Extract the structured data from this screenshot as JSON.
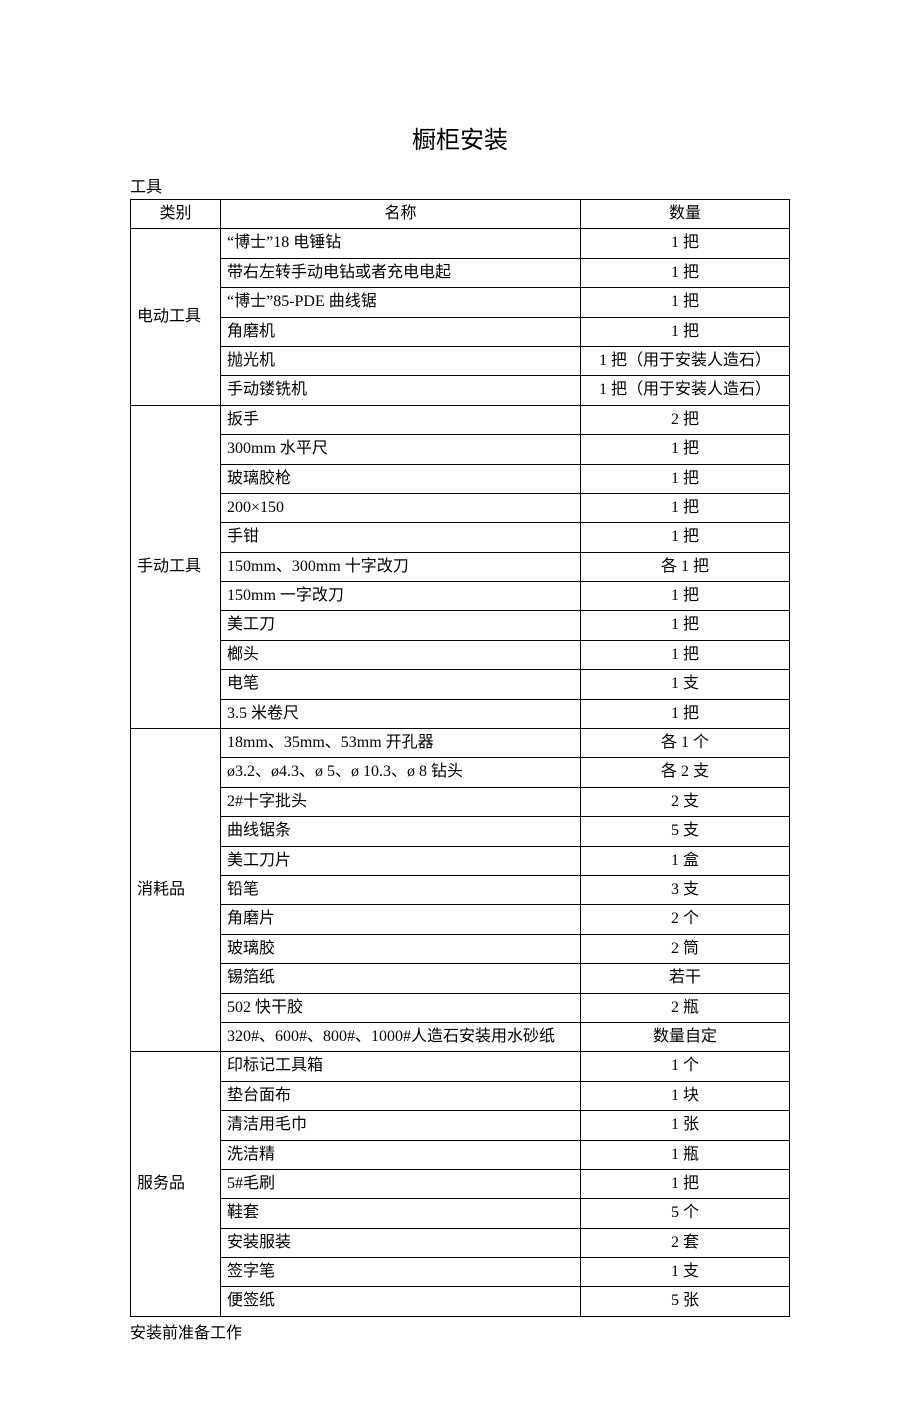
{
  "title": "橱柜安装",
  "section_heading": "工具",
  "footer_note": "安装前准备工作",
  "headers": {
    "category": "类别",
    "name": "名称",
    "qty": "数量"
  },
  "groups": [
    {
      "category": "电动工具",
      "rows": [
        {
          "name": "“博士”18 电锤钻",
          "qty": "1 把"
        },
        {
          "name": "带右左转手动电钻或者充电电起",
          "qty": "1 把"
        },
        {
          "name": "“博士”85-PDE 曲线锯",
          "qty": "1 把"
        },
        {
          "name": "角磨机",
          "qty": "1 把"
        },
        {
          "name": "抛光机",
          "qty": "1 把（用于安装人造石）"
        },
        {
          "name": "手动镂铣机",
          "qty": "1 把（用于安装人造石）"
        }
      ]
    },
    {
      "category": "手动工具",
      "rows": [
        {
          "name": "扳手",
          "qty": "2 把"
        },
        {
          "name": "300mm 水平尺",
          "qty": "1 把"
        },
        {
          "name": "玻璃胶枪",
          "qty": "1 把"
        },
        {
          "name": "200×150",
          "qty": "1 把"
        },
        {
          "name": "手钳",
          "qty": "1 把"
        },
        {
          "name": "150mm、300mm 十字改刀",
          "qty": "各 1 把"
        },
        {
          "name": "150mm 一字改刀",
          "qty": "1 把"
        },
        {
          "name": "美工刀",
          "qty": "1 把"
        },
        {
          "name": "榔头",
          "qty": "1 把"
        },
        {
          "name": "电笔",
          "qty": "1 支"
        },
        {
          "name": "3.5 米卷尺",
          "qty": "1 把"
        }
      ]
    },
    {
      "category": "消耗品",
      "rows": [
        {
          "name": "18mm、35mm、53mm 开孔器",
          "qty": "各 1 个"
        },
        {
          "name": "ø3.2、ø4.3、ø 5、ø 10.3、ø 8 钻头",
          "qty": "各 2 支"
        },
        {
          "name": "2#十字批头",
          "qty": "2 支"
        },
        {
          "name": "曲线锯条",
          "qty": "5 支"
        },
        {
          "name": "美工刀片",
          "qty": "1 盒"
        },
        {
          "name": "铅笔",
          "qty": "3 支"
        },
        {
          "name": "角磨片",
          "qty": "2 个"
        },
        {
          "name": "玻璃胶",
          "qty": "2 筒"
        },
        {
          "name": "锡箔纸",
          "qty": "若干"
        },
        {
          "name": "502 快干胶",
          "qty": "2 瓶"
        },
        {
          "name": "320#、600#、800#、1000#人造石安装用水砂纸",
          "qty": "数量自定"
        }
      ]
    },
    {
      "category": "服务品",
      "rows": [
        {
          "name": "印标记工具箱",
          "qty": "1 个"
        },
        {
          "name": "垫台面布",
          "qty": "1 块"
        },
        {
          "name": "清洁用毛巾",
          "qty": "1 张"
        },
        {
          "name": "洗洁精",
          "qty": "1 瓶"
        },
        {
          "name": "5#毛刷",
          "qty": "1 把"
        },
        {
          "name": "鞋套",
          "qty": "5 个"
        },
        {
          "name": "安装服装",
          "qty": "2 套"
        },
        {
          "name": "签字笔",
          "qty": "1 支"
        },
        {
          "name": "便签纸",
          "qty": "5 张"
        }
      ]
    }
  ]
}
